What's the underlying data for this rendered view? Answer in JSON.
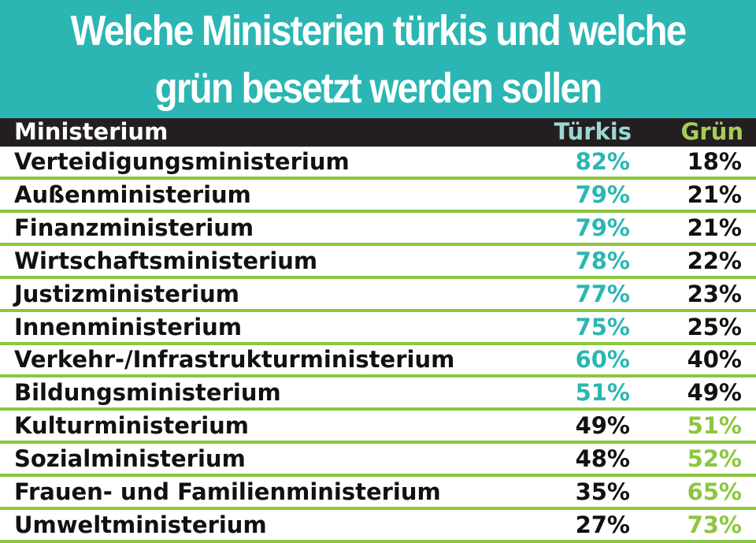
{
  "title": {
    "line1": "Welche Ministerien türkis und welche",
    "line2": "grün besetzt werden sollen"
  },
  "colors": {
    "header_bg": "#2bb6b3",
    "teal": "#2bb6b3",
    "green": "#8cc63f",
    "dark": "#111111"
  },
  "chart_data": {
    "type": "table",
    "title": "Welche Ministerien türkis und welche grün besetzt werden sollen",
    "columns": [
      "Ministerium",
      "Türkis",
      "Grün"
    ],
    "rows": [
      {
        "label": "Verteidigungsministerium",
        "tuerkis": "82%",
        "gruen": "18%",
        "tuerkis_value": 82,
        "gruen_value": 18
      },
      {
        "label": "Außenministerium",
        "tuerkis": "79%",
        "gruen": "21%",
        "tuerkis_value": 79,
        "gruen_value": 21
      },
      {
        "label": "Finanzministerium",
        "tuerkis": "79%",
        "gruen": "21%",
        "tuerkis_value": 79,
        "gruen_value": 21
      },
      {
        "label": "Wirtschaftsministerium",
        "tuerkis": "78%",
        "gruen": "22%",
        "tuerkis_value": 78,
        "gruen_value": 22
      },
      {
        "label": "Justizministerium",
        "tuerkis": "77%",
        "gruen": "23%",
        "tuerkis_value": 77,
        "gruen_value": 23
      },
      {
        "label": "Innenministerium",
        "tuerkis": "75%",
        "gruen": "25%",
        "tuerkis_value": 75,
        "gruen_value": 25
      },
      {
        "label": "Verkehr-/Infrastrukturministerium",
        "tuerkis": "60%",
        "gruen": "40%",
        "tuerkis_value": 60,
        "gruen_value": 40
      },
      {
        "label": "Bildungsministerium",
        "tuerkis": "51%",
        "gruen": "49%",
        "tuerkis_value": 51,
        "gruen_value": 49
      },
      {
        "label": "Kulturministerium",
        "tuerkis": "49%",
        "gruen": "51%",
        "tuerkis_value": 49,
        "gruen_value": 51
      },
      {
        "label": "Sozialministerium",
        "tuerkis": "48%",
        "gruen": "52%",
        "tuerkis_value": 48,
        "gruen_value": 52
      },
      {
        "label": "Frauen- und Familienministerium",
        "tuerkis": "35%",
        "gruen": "65%",
        "tuerkis_value": 35,
        "gruen_value": 65
      },
      {
        "label": "Umweltministerium",
        "tuerkis": "27%",
        "gruen": "73%",
        "tuerkis_value": 27,
        "gruen_value": 73
      }
    ]
  }
}
